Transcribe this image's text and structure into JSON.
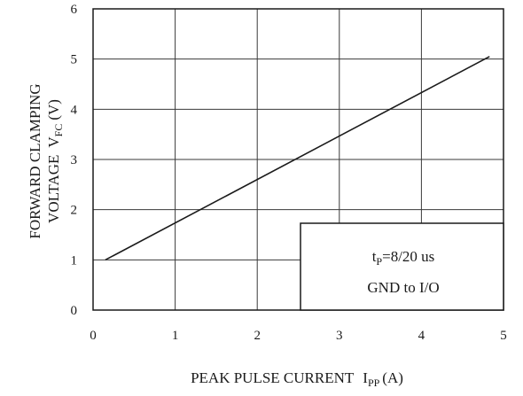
{
  "chart_data": {
    "type": "line",
    "xlabel": "PEAK PULSE CURRENT",
    "xlabel_symbol": "I",
    "xlabel_subscript": "PP",
    "xlabel_unit": "(A)",
    "ylabel_line1": "FORWARD CLAMPING",
    "ylabel_line2": "VOLTAGE",
    "ylabel_symbol": "V",
    "ylabel_subscript": "FC",
    "ylabel_unit": "(V)",
    "xlim": [
      0,
      5
    ],
    "ylim": [
      0,
      6
    ],
    "x_ticks": [
      0,
      1,
      2,
      3,
      4,
      5
    ],
    "y_ticks": [
      0,
      1,
      2,
      3,
      4,
      5,
      6
    ],
    "grid": true,
    "series": [
      {
        "x": [
          0.15,
          4.83
        ],
        "y": [
          1.0,
          5.05
        ]
      }
    ],
    "annotation": {
      "line1_prefix": "t",
      "line1_subscript": "P",
      "line1_suffix": "=8/20 us",
      "line2": "GND to I/O",
      "position": "bottom-right"
    },
    "colors": {
      "line": "#1a1a1a",
      "grid": "#3a3a3a",
      "text": "#1a1a1a"
    }
  }
}
